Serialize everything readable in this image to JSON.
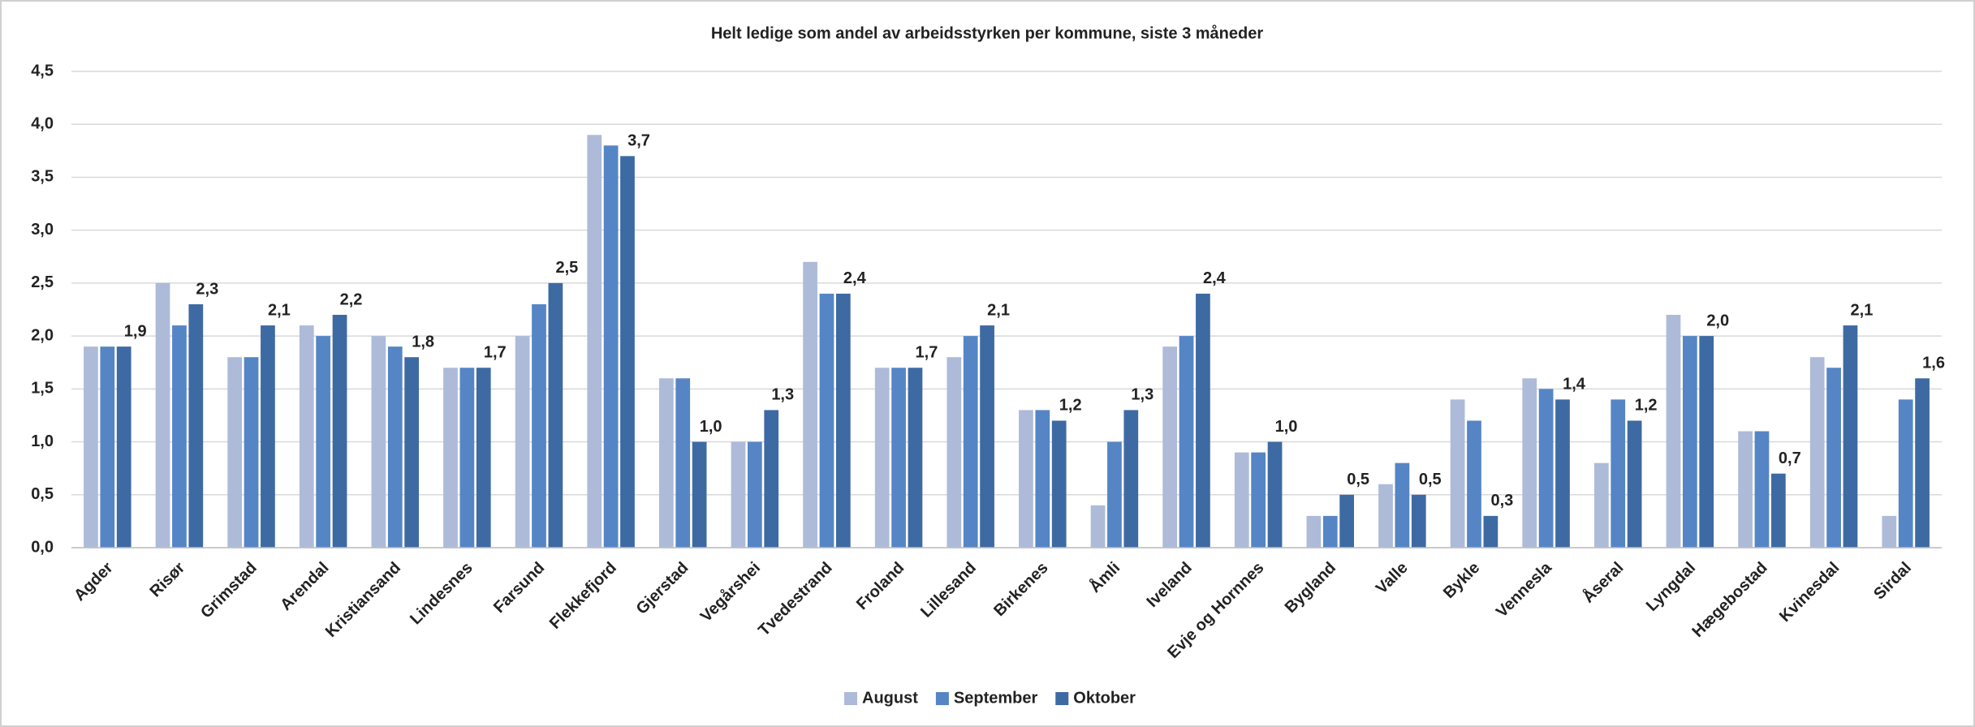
{
  "chart_data": {
    "type": "bar",
    "title": "Helt ledige som andel av arbeidsstyrken per kommune, siste 3 måneder",
    "categories": [
      "Agder",
      "Risør",
      "Grimstad",
      "Arendal",
      "Kristiansand",
      "Lindesnes",
      "Farsund",
      "Flekkefjord",
      "Gjerstad",
      "Vegårshei",
      "Tvedestrand",
      "Froland",
      "Lillesand",
      "Birkenes",
      "Åmli",
      "Iveland",
      "Evje og Hornnes",
      "Bygland",
      "Valle",
      "Bykle",
      "Vennesla",
      "Åseral",
      "Lyngdal",
      "Hægebostad",
      "Kvinesdal",
      "Sirdal"
    ],
    "series": [
      {
        "name": "August",
        "color": "#adbbd9",
        "values": [
          1.9,
          2.5,
          1.8,
          2.1,
          2.0,
          1.7,
          2.0,
          3.9,
          1.6,
          1.0,
          2.7,
          1.7,
          1.8,
          1.3,
          0.4,
          1.9,
          0.9,
          0.3,
          0.6,
          1.4,
          1.6,
          0.8,
          2.2,
          1.1,
          1.8,
          0.3
        ]
      },
      {
        "name": "September",
        "color": "#5585c5",
        "values": [
          1.9,
          2.1,
          1.8,
          2.0,
          1.9,
          1.7,
          2.3,
          3.8,
          1.6,
          1.0,
          2.4,
          1.7,
          2.0,
          1.3,
          1.0,
          2.0,
          0.9,
          0.3,
          0.8,
          1.2,
          1.5,
          1.4,
          2.0,
          1.1,
          1.7,
          1.4
        ]
      },
      {
        "name": "Oktober",
        "color": "#3d6aa3",
        "values": [
          1.9,
          2.3,
          2.1,
          2.2,
          1.8,
          1.7,
          2.5,
          3.7,
          1.0,
          1.3,
          2.4,
          1.7,
          2.1,
          1.2,
          1.3,
          2.4,
          1.0,
          0.5,
          0.5,
          0.3,
          1.4,
          1.2,
          2.0,
          0.7,
          2.1,
          1.6
        ],
        "value_labels": [
          "1,9",
          "2,3",
          "2,1",
          "2,2",
          "1,8",
          "1,7",
          "2,5",
          "3,7",
          "1,0",
          "1,3",
          "2,4",
          "1,7",
          "2,1",
          "1,2",
          "1,3",
          "2,4",
          "1,0",
          "0,5",
          "0,5",
          "0,3",
          "1,4",
          "1,2",
          "2,0",
          "0,7",
          "2,1",
          "1,6"
        ]
      }
    ],
    "ylim": [
      0,
      4.5
    ],
    "yticks": [
      {
        "value": 0,
        "label": "0,0"
      },
      {
        "value": 0.5,
        "label": "0,5"
      },
      {
        "value": 1,
        "label": "1,0"
      },
      {
        "value": 1.5,
        "label": "1,5"
      },
      {
        "value": 2,
        "label": "2,0"
      },
      {
        "value": 2.5,
        "label": "2,5"
      },
      {
        "value": 3,
        "label": "3,0"
      },
      {
        "value": 3.5,
        "label": "3,5"
      },
      {
        "value": 4,
        "label": "4,0"
      },
      {
        "value": 4.5,
        "label": "4,5"
      }
    ],
    "grid": true,
    "legend": "bottom"
  }
}
